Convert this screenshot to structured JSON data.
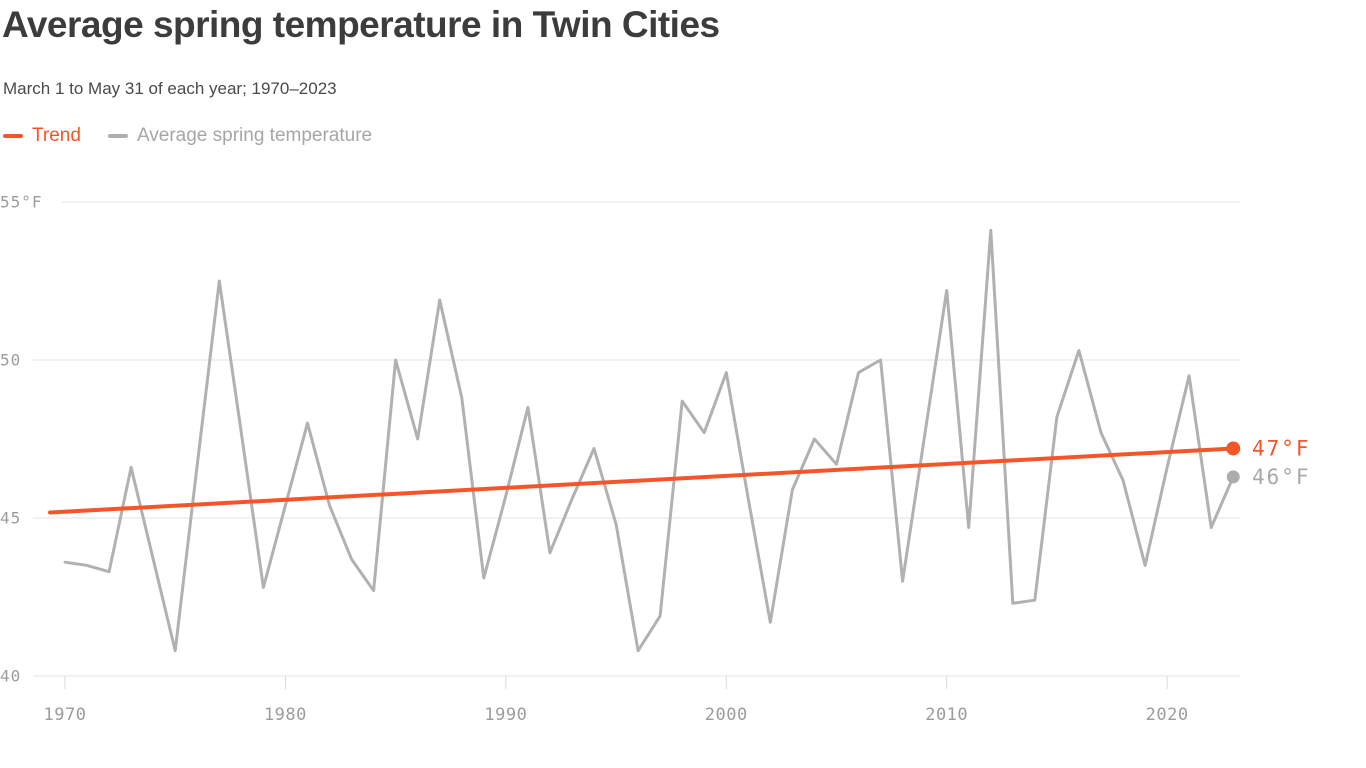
{
  "header": {
    "title": "Average spring temperature in Twin Cities",
    "subtitle": "March 1 to May 31 of each year; 1970–2023"
  },
  "legend": [
    {
      "label": "Trend",
      "color": "#F4562A",
      "text_color": "#F4562A"
    },
    {
      "label": "Average spring temperature",
      "color": "#AFAFAF",
      "text_color": "#A6A6A6"
    }
  ],
  "colors": {
    "background": "#FFFFFF",
    "title": "#3C3C3C",
    "subtitle": "#4A4A4A",
    "axis_text": "#9C9C9C",
    "gridline": "#E3E3E3",
    "tick": "#D9D9D9",
    "series_line": "#B1B1B1",
    "series_dot": "#ACACAC",
    "series_label": "#A9A9A9",
    "trend": "#F4562A"
  },
  "chart_data": {
    "type": "line",
    "title": "Average spring temperature in Twin Cities",
    "subtitle": "March 1 to May 31 of each year; 1970–2023",
    "unit": "°F",
    "grid": "horizontal",
    "legend_position": "top-left",
    "x": [
      1970,
      1971,
      1972,
      1973,
      1974,
      1975,
      1976,
      1977,
      1978,
      1979,
      1980,
      1981,
      1982,
      1983,
      1984,
      1985,
      1986,
      1987,
      1988,
      1989,
      1990,
      1991,
      1992,
      1993,
      1994,
      1995,
      1996,
      1997,
      1998,
      1999,
      2000,
      2001,
      2002,
      2003,
      2004,
      2005,
      2006,
      2007,
      2008,
      2009,
      2010,
      2011,
      2012,
      2013,
      2014,
      2015,
      2016,
      2017,
      2018,
      2019,
      2020,
      2021,
      2022,
      2023
    ],
    "series": [
      {
        "name": "Average spring temperature",
        "color": "#B1B1B1",
        "end_label": "46°F",
        "values": [
          43.6,
          43.5,
          43.3,
          46.6,
          43.7,
          40.8,
          46.7,
          52.5,
          47.7,
          42.8,
          45.4,
          48.0,
          45.4,
          43.7,
          42.7,
          50.0,
          47.5,
          51.9,
          48.8,
          43.1,
          45.7,
          48.5,
          43.9,
          45.6,
          47.2,
          44.8,
          40.8,
          41.9,
          48.7,
          47.7,
          49.6,
          45.6,
          41.7,
          45.9,
          47.5,
          46.7,
          49.6,
          50.0,
          43.0,
          47.6,
          52.2,
          44.7,
          54.1,
          42.3,
          42.4,
          48.2,
          50.3,
          47.7,
          46.2,
          43.5,
          46.6,
          49.5,
          44.7,
          46.3
        ]
      }
    ],
    "trend": {
      "name": "Trend",
      "color": "#F4562A",
      "start_year": 1970,
      "start_value": 45.2,
      "end_year": 2023,
      "end_value": 47.2,
      "end_label": "47°F"
    },
    "y_axis": {
      "range": [
        40,
        55
      ],
      "ticks": [
        {
          "value": 55,
          "label": "55°F"
        },
        {
          "value": 50,
          "label": "50"
        },
        {
          "value": 45,
          "label": "45"
        },
        {
          "value": 40,
          "label": "40"
        }
      ]
    },
    "x_axis": {
      "ticks": [
        {
          "value": 1970,
          "label": "1970"
        },
        {
          "value": 1980,
          "label": "1980"
        },
        {
          "value": 1990,
          "label": "1990"
        },
        {
          "value": 2000,
          "label": "2000"
        },
        {
          "value": 2010,
          "label": "2010"
        },
        {
          "value": 2020,
          "label": "2020"
        }
      ]
    }
  }
}
